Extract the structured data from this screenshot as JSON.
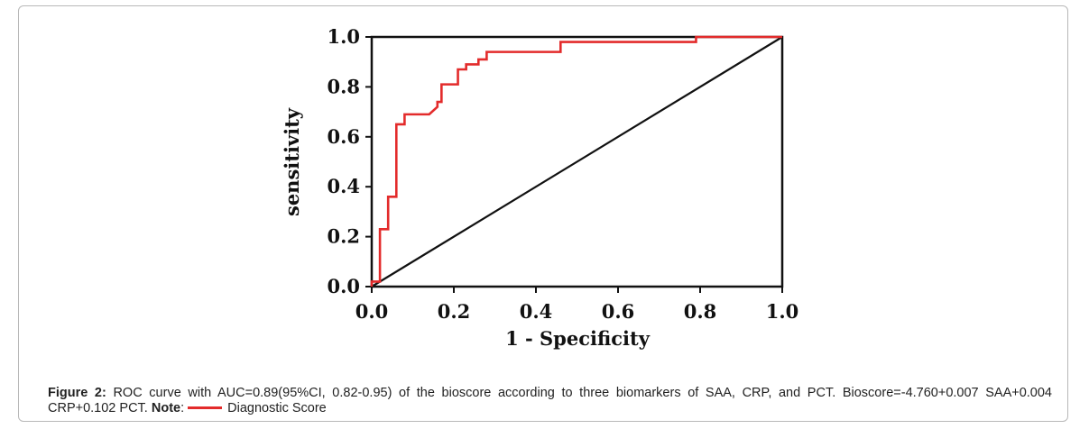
{
  "chart_data": {
    "type": "line",
    "xlabel": "1 - Specificity",
    "ylabel": "sensitivity",
    "xlim": [
      0.0,
      1.0
    ],
    "ylim": [
      0.0,
      1.0
    ],
    "x_ticks": [
      "0.0",
      "0.2",
      "0.4",
      "0.6",
      "0.8",
      "1.0"
    ],
    "y_ticks": [
      "0.0",
      "0.2",
      "0.4",
      "0.6",
      "0.8",
      "1.0"
    ],
    "grid": false,
    "series": [
      {
        "name": "Diagnostic Score",
        "color": "#e32b2b",
        "x": [
          0.0,
          0.0,
          0.02,
          0.02,
          0.04,
          0.04,
          0.06,
          0.06,
          0.08,
          0.08,
          0.14,
          0.16,
          0.16,
          0.17,
          0.17,
          0.21,
          0.21,
          0.23,
          0.23,
          0.26,
          0.26,
          0.28,
          0.28,
          0.46,
          0.46,
          0.79,
          0.79,
          1.0
        ],
        "y": [
          0.0,
          0.02,
          0.02,
          0.23,
          0.23,
          0.36,
          0.36,
          0.65,
          0.65,
          0.69,
          0.69,
          0.72,
          0.74,
          0.74,
          0.81,
          0.81,
          0.87,
          0.87,
          0.89,
          0.89,
          0.91,
          0.91,
          0.94,
          0.94,
          0.98,
          0.98,
          1.0,
          1.0
        ]
      },
      {
        "color": "#111111",
        "x": [
          0.0,
          1.0
        ],
        "y": [
          0.0,
          1.0
        ]
      }
    ]
  },
  "caption": {
    "label": "Figure 2:",
    "text": " ROC curve with AUC=0.89(95%CI, 0.82-0.95) of the bioscore according to three biomarkers of SAA, CRP, and PCT. Bioscore=-4.760+0.007 SAA+0.004 CRP+0.102 PCT. ",
    "note_label": "Note",
    "note_sep": ":",
    "legend_text": "Diagnostic Score"
  }
}
